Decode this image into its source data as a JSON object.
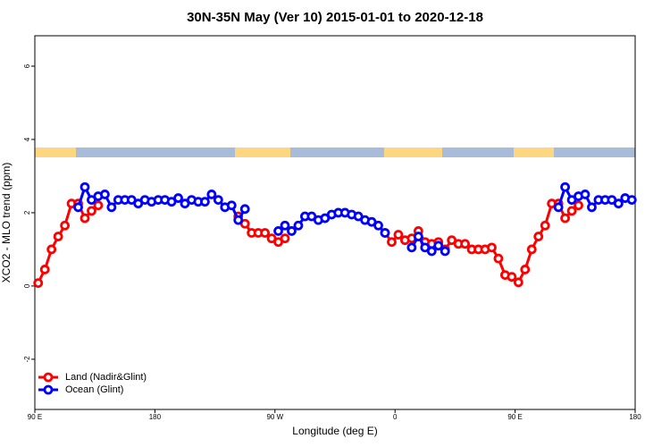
{
  "chart_data": {
    "type": "line",
    "title": "30N-35N May (Ver 10)   2015-01-01 to 2020-12-18",
    "x_label": "Longitude (deg E)",
    "y_label": "XCO2 - MLO trend (ppm)",
    "xlim": [
      90,
      540
    ],
    "ylim": [
      -3.37,
      6.83
    ],
    "xticks": [
      {
        "value": 90,
        "label": "90 E"
      },
      {
        "value": 180,
        "label": "180"
      },
      {
        "value": 270,
        "label": "90 W"
      },
      {
        "value": 360,
        "label": "0"
      },
      {
        "value": 450,
        "label": "90 E"
      },
      {
        "value": 540,
        "label": "180"
      }
    ],
    "yticks": [
      -2,
      0,
      2,
      4,
      6
    ],
    "legend": "bottom-left",
    "x": [
      92.5,
      97.5,
      102.5,
      107.5,
      112.5,
      117.5,
      122.5,
      127.5,
      132.5,
      137.5,
      142.5,
      147.5,
      152.5,
      157.5,
      162.5,
      167.5,
      172.5,
      177.5,
      182.5,
      187.5,
      192.5,
      197.5,
      202.5,
      207.5,
      212.5,
      217.5,
      222.5,
      227.5,
      232.5,
      237.5,
      242.5,
      247.5,
      252.5,
      257.5,
      262.5,
      267.5,
      272.5,
      277.5,
      282.5,
      287.5,
      292.5,
      297.5,
      302.5,
      307.5,
      312.5,
      317.5,
      322.5,
      327.5,
      332.5,
      337.5,
      342.5,
      347.5,
      352.5,
      357.5,
      362.5,
      367.5,
      372.5,
      377.5,
      382.5,
      387.5,
      392.5,
      397.5,
      402.5,
      407.5,
      412.5,
      417.5,
      422.5,
      427.5,
      432.5,
      437.5,
      442.5,
      447.5,
      452.5,
      457.5,
      462.5,
      467.5,
      472.5,
      477.5,
      482.5,
      487.5,
      492.5,
      497.5,
      502.5,
      507.5,
      512.5,
      517.5,
      522.5,
      527.5,
      532.5,
      537.5
    ],
    "series": [
      {
        "name": "Land (Nadir&Glint)",
        "color": "#ff0000",
        "values": [
          0.08,
          0.45,
          1.0,
          1.35,
          1.65,
          2.25,
          2.25,
          1.85,
          2.05,
          2.2,
          null,
          null,
          null,
          null,
          null,
          null,
          null,
          null,
          null,
          null,
          null,
          null,
          null,
          null,
          null,
          null,
          null,
          null,
          null,
          null,
          1.9,
          1.7,
          1.45,
          1.45,
          1.45,
          1.3,
          1.2,
          1.3,
          null,
          null,
          null,
          null,
          null,
          null,
          null,
          null,
          null,
          null,
          null,
          null,
          null,
          null,
          1.45,
          1.2,
          1.4,
          1.25,
          1.3,
          1.5,
          1.2,
          1.15,
          1.2,
          1.0,
          1.25,
          1.15,
          1.15,
          1.0,
          1.0,
          1.0,
          1.05,
          0.75,
          0.3,
          0.25,
          0.1,
          0.45,
          1.0,
          1.35,
          1.65,
          2.25,
          2.25,
          1.85,
          2.05,
          2.2,
          null,
          null,
          null,
          null,
          null,
          null,
          null,
          null
        ]
      },
      {
        "name": "Ocean (Glint)",
        "color": "#0000ff",
        "values": [
          null,
          null,
          null,
          null,
          null,
          null,
          2.15,
          2.7,
          2.35,
          2.45,
          2.5,
          2.15,
          2.35,
          2.35,
          2.35,
          2.25,
          2.35,
          2.3,
          2.35,
          2.35,
          2.3,
          2.4,
          2.25,
          2.35,
          2.3,
          2.3,
          2.5,
          2.35,
          2.15,
          2.2,
          1.8,
          2.1,
          null,
          null,
          null,
          null,
          1.5,
          1.65,
          1.5,
          1.65,
          1.9,
          1.9,
          1.8,
          1.85,
          1.95,
          2.0,
          2.0,
          1.95,
          1.9,
          1.8,
          1.75,
          1.65,
          1.45,
          null,
          null,
          null,
          1.05,
          1.35,
          1.05,
          0.95,
          1.1,
          0.95,
          null,
          null,
          null,
          null,
          null,
          null,
          null,
          null,
          null,
          null,
          null,
          null,
          null,
          null,
          null,
          null,
          2.15,
          2.7,
          2.35,
          2.45,
          2.5,
          2.15,
          2.35,
          2.35,
          2.35,
          2.25,
          2.4,
          2.35
        ]
      }
    ]
  }
}
